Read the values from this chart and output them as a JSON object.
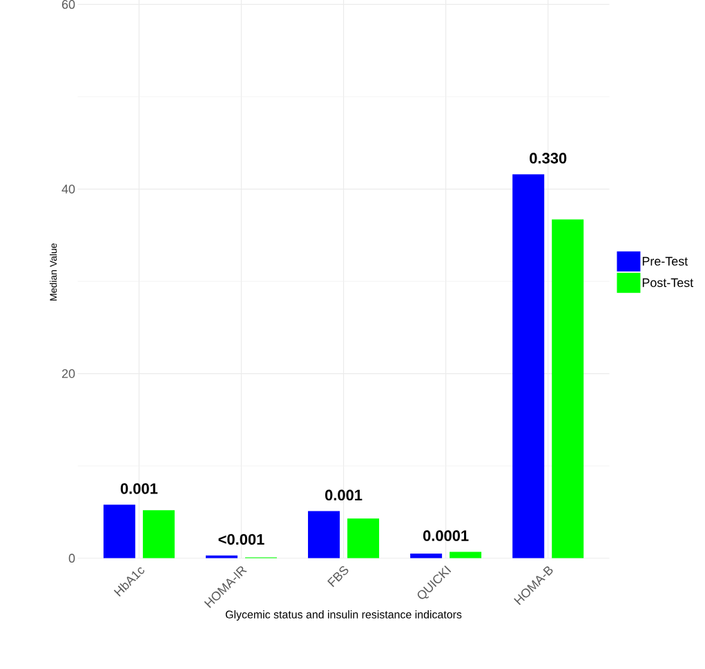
{
  "chart_data": {
    "type": "bar",
    "xlabel": "Glycemic status and insulin resistance indicators",
    "ylabel": "Median Value",
    "categories": [
      "HbA1c",
      "HOMA-IR",
      "FBS",
      "QUICKI",
      "HOMA-B"
    ],
    "series": [
      {
        "name": "Pre-Test",
        "color": "#0000ff",
        "values": [
          5.8,
          0.3,
          5.1,
          0.5,
          41.6
        ]
      },
      {
        "name": "Post-Test",
        "color": "#00ff00",
        "values": [
          5.2,
          0.1,
          4.3,
          0.7,
          36.7
        ]
      }
    ],
    "ylim": [
      0,
      62
    ],
    "yticks": [
      0,
      20,
      40,
      60
    ],
    "grid": true,
    "legend": "right",
    "annotations": [
      "0.001",
      "<0.001",
      "0.001",
      "0.0001",
      "0.330"
    ]
  }
}
